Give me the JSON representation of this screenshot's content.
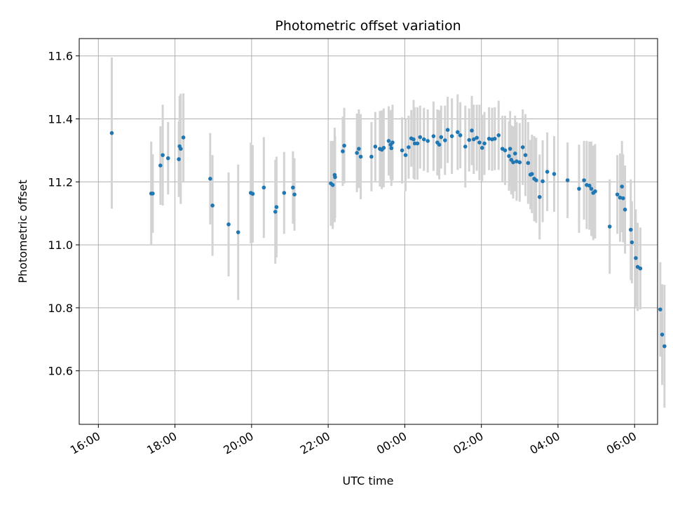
{
  "chart_data": {
    "type": "scatter",
    "title": "Photometric offset variation",
    "xlabel": "UTC time",
    "ylabel": "Photometric offset",
    "xlim": [
      -0.5,
      14.6
    ],
    "ylim": [
      10.43,
      11.655
    ],
    "grid": true,
    "xticks": [
      {
        "value": 0,
        "label": "16:00"
      },
      {
        "value": 2,
        "label": "18:00"
      },
      {
        "value": 4,
        "label": "20:00"
      },
      {
        "value": 6,
        "label": "22:00"
      },
      {
        "value": 8,
        "label": "00:00"
      },
      {
        "value": 10,
        "label": "02:00"
      },
      {
        "value": 12,
        "label": "04:00"
      },
      {
        "value": 14,
        "label": "06:00"
      }
    ],
    "yticks": [
      {
        "value": 10.6,
        "label": "10.6"
      },
      {
        "value": 10.8,
        "label": "10.8"
      },
      {
        "value": 11.0,
        "label": "11.0"
      },
      {
        "value": 11.2,
        "label": "11.2"
      },
      {
        "value": 11.4,
        "label": "11.4"
      },
      {
        "value": 11.6,
        "label": "11.6"
      }
    ],
    "point_color": "#1f77b4",
    "errorbar_color": "#d3d3d3",
    "series": [
      {
        "name": "offset",
        "x": [
          0.35,
          1.38,
          1.42,
          1.62,
          1.68,
          1.82,
          2.1,
          2.12,
          2.15,
          2.22,
          2.92,
          2.98,
          3.4,
          3.65,
          3.98,
          4.03,
          4.32,
          4.62,
          4.65,
          4.85,
          5.08,
          5.12,
          6.07,
          6.12,
          6.17,
          6.18,
          6.38,
          6.42,
          6.75,
          6.8,
          6.85,
          7.13,
          7.23,
          7.35,
          7.4,
          7.45,
          7.58,
          7.63,
          7.65,
          7.68,
          7.93,
          8.02,
          8.1,
          8.17,
          8.23,
          8.26,
          8.33,
          8.4,
          8.5,
          8.6,
          8.75,
          8.85,
          8.9,
          8.95,
          9.05,
          9.12,
          9.23,
          9.38,
          9.45,
          9.58,
          9.68,
          9.75,
          9.8,
          9.88,
          9.95,
          10.02,
          10.08,
          10.2,
          10.28,
          10.35,
          10.45,
          10.55,
          10.62,
          10.72,
          10.75,
          10.78,
          10.83,
          10.88,
          10.92,
          11.0,
          11.08,
          11.15,
          11.22,
          11.28,
          11.32,
          11.38,
          11.43,
          11.52,
          11.6,
          11.72,
          11.9,
          12.25,
          12.55,
          12.68,
          12.75,
          12.82,
          12.87,
          12.92,
          12.97,
          13.35,
          13.55,
          13.62,
          13.67,
          13.7,
          13.75,
          13.9,
          13.93,
          14.03,
          14.08,
          14.15,
          14.67,
          14.72,
          14.78
        ],
        "y": [
          11.355,
          11.163,
          11.163,
          11.252,
          11.285,
          11.275,
          11.272,
          11.313,
          11.305,
          11.341,
          11.21,
          11.125,
          11.065,
          11.04,
          11.165,
          11.162,
          11.182,
          11.105,
          11.12,
          11.165,
          11.182,
          11.16,
          11.195,
          11.19,
          11.222,
          11.215,
          11.297,
          11.315,
          11.292,
          11.305,
          11.28,
          11.28,
          11.312,
          11.305,
          11.302,
          11.308,
          11.33,
          11.318,
          11.307,
          11.325,
          11.3,
          11.285,
          11.31,
          11.338,
          11.335,
          11.322,
          11.322,
          11.342,
          11.335,
          11.33,
          11.345,
          11.325,
          11.318,
          11.342,
          11.332,
          11.365,
          11.345,
          11.358,
          11.348,
          11.312,
          11.333,
          11.363,
          11.335,
          11.34,
          11.325,
          11.308,
          11.322,
          11.337,
          11.335,
          11.337,
          11.348,
          11.305,
          11.3,
          11.282,
          11.305,
          11.27,
          11.262,
          11.29,
          11.265,
          11.262,
          11.31,
          11.285,
          11.26,
          11.223,
          11.225,
          11.21,
          11.205,
          11.152,
          11.202,
          11.232,
          11.225,
          11.205,
          11.178,
          11.205,
          11.19,
          11.188,
          11.178,
          11.165,
          11.17,
          11.058,
          11.16,
          11.15,
          11.185,
          11.148,
          11.112,
          11.048,
          11.008,
          10.958,
          10.93,
          10.925,
          10.795,
          10.715,
          10.678
        ],
        "err": [
          0.24,
          0.165,
          0.125,
          0.125,
          0.16,
          0.115,
          0.12,
          0.16,
          0.175,
          0.14,
          0.145,
          0.16,
          0.165,
          0.215,
          0.16,
          0.155,
          0.16,
          0.165,
          0.16,
          0.13,
          0.115,
          0.115,
          0.135,
          0.14,
          0.15,
          0.13,
          0.11,
          0.12,
          0.125,
          0.125,
          0.135,
          0.11,
          0.11,
          0.12,
          0.125,
          0.125,
          0.11,
          0.11,
          0.12,
          0.12,
          0.105,
          0.115,
          0.1,
          0.09,
          0.125,
          0.115,
          0.115,
          0.1,
          0.1,
          0.1,
          0.11,
          0.105,
          0.11,
          0.1,
          0.11,
          0.105,
          0.12,
          0.12,
          0.105,
          0.13,
          0.1,
          0.11,
          0.11,
          0.105,
          0.12,
          0.105,
          0.1,
          0.1,
          0.1,
          0.1,
          0.11,
          0.105,
          0.11,
          0.11,
          0.12,
          0.11,
          0.115,
          0.12,
          0.125,
          0.125,
          0.12,
          0.13,
          0.13,
          0.11,
          0.125,
          0.135,
          0.135,
          0.135,
          0.13,
          0.125,
          0.12,
          0.12,
          0.14,
          0.125,
          0.14,
          0.14,
          0.15,
          0.15,
          0.15,
          0.15,
          0.125,
          0.14,
          0.145,
          0.14,
          0.14,
          0.16,
          0.13,
          0.155,
          0.14,
          0.13,
          0.15,
          0.16,
          0.195
        ]
      }
    ]
  }
}
